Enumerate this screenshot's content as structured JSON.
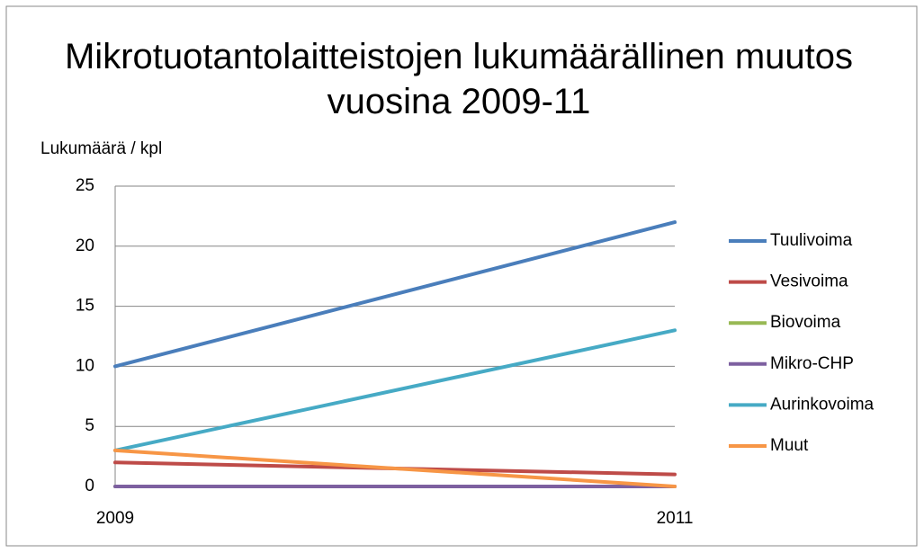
{
  "chart_data": {
    "type": "line",
    "title": "Mikrotuotantolaitteistojen lukumäärällinen muutos vuosina 2009-11",
    "y_label": "Lukumäärä / kpl",
    "categories": [
      "2009",
      "2011"
    ],
    "series": [
      {
        "name": "Tuulivoima",
        "color": "#4a7ebb",
        "values": [
          10,
          22
        ]
      },
      {
        "name": "Vesivoima",
        "color": "#be4b48",
        "values": [
          2,
          1
        ]
      },
      {
        "name": "Biovoima",
        "color": "#98b954",
        "values": [
          0,
          0
        ]
      },
      {
        "name": "Mikro-CHP",
        "color": "#7d60a0",
        "values": [
          0,
          0
        ]
      },
      {
        "name": "Aurinkovoima",
        "color": "#46aac5",
        "values": [
          3,
          13
        ]
      },
      {
        "name": "Muut",
        "color": "#f79646",
        "values": [
          3,
          0
        ]
      }
    ],
    "ylim": [
      0,
      25
    ],
    "yticks": [
      0,
      5,
      10,
      15,
      20,
      25
    ],
    "grid": true,
    "legend": "right"
  }
}
